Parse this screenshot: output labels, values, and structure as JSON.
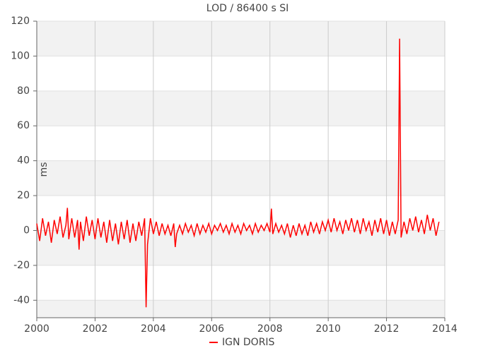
{
  "chart_data": {
    "type": "line",
    "title": "LOD / 86400 s SI",
    "ylabel": "ms",
    "xlim": [
      2000,
      2014
    ],
    "xticks": [
      2000,
      2002,
      2004,
      2006,
      2008,
      2010,
      2012,
      2014
    ],
    "ylim": [
      -50,
      120
    ],
    "yticks": [
      -40,
      -20,
      0,
      20,
      40,
      60,
      80,
      100,
      120
    ],
    "grid": true,
    "legend": "bottom",
    "series": [
      {
        "name": "IGN DORIS",
        "color": "#ff0000",
        "x": [
          2000,
          2000.1,
          2000.2,
          2000.3,
          2000.4,
          2000.5,
          2000.6,
          2000.7,
          2000.8,
          2000.9,
          2001,
          2001.05,
          2001.1,
          2001.2,
          2001.3,
          2001.4,
          2001.45,
          2001.5,
          2001.6,
          2001.7,
          2001.8,
          2001.9,
          2002,
          2002.1,
          2002.2,
          2002.3,
          2002.4,
          2002.5,
          2002.6,
          2002.7,
          2002.8,
          2002.9,
          2003,
          2003.1,
          2003.2,
          2003.3,
          2003.4,
          2003.5,
          2003.6,
          2003.7,
          2003.75,
          2003.8,
          2003.9,
          2004,
          2004.1,
          2004.2,
          2004.3,
          2004.4,
          2004.5,
          2004.6,
          2004.7,
          2004.75,
          2004.8,
          2004.9,
          2005,
          2005.1,
          2005.2,
          2005.3,
          2005.4,
          2005.5,
          2005.6,
          2005.7,
          2005.8,
          2005.9,
          2006,
          2006.1,
          2006.2,
          2006.3,
          2006.4,
          2006.5,
          2006.6,
          2006.7,
          2006.8,
          2006.9,
          2007,
          2007.1,
          2007.2,
          2007.3,
          2007.4,
          2007.5,
          2007.6,
          2007.7,
          2007.8,
          2007.9,
          2008,
          2008.05,
          2008.1,
          2008.2,
          2008.3,
          2008.4,
          2008.5,
          2008.6,
          2008.7,
          2008.8,
          2008.9,
          2009,
          2009.1,
          2009.2,
          2009.3,
          2009.4,
          2009.5,
          2009.6,
          2009.7,
          2009.8,
          2009.9,
          2010,
          2010.1,
          2010.2,
          2010.3,
          2010.4,
          2010.5,
          2010.6,
          2010.7,
          2010.8,
          2010.9,
          2011,
          2011.1,
          2011.2,
          2011.3,
          2011.4,
          2011.5,
          2011.6,
          2011.7,
          2011.8,
          2011.9,
          2012,
          2012.1,
          2012.2,
          2012.3,
          2012.4,
          2012.45,
          2012.5,
          2012.6,
          2012.7,
          2012.8,
          2012.9,
          2013,
          2013.1,
          2013.2,
          2013.3,
          2013.4,
          2013.5,
          2013.6,
          2013.7,
          2013.8
        ],
        "values": [
          4,
          -6,
          7,
          -3,
          5,
          -7,
          6,
          -2,
          8,
          -4,
          3,
          13,
          -5,
          7,
          -4,
          6,
          -11,
          5,
          -6,
          8,
          -3,
          6,
          -5,
          7,
          -4,
          5,
          -7,
          6,
          -6,
          4,
          -8,
          5,
          -5,
          6,
          -7,
          4,
          -6,
          5,
          -3,
          7,
          -44,
          -8,
          7,
          -2,
          5,
          -3,
          4,
          -2,
          3,
          -3,
          4,
          -9.5,
          -2,
          3,
          -2,
          4,
          -1,
          3,
          -3,
          4,
          -2,
          3,
          -1,
          4,
          -2,
          3,
          0,
          4,
          -1,
          3,
          -2,
          4,
          -1,
          3,
          -2,
          4,
          0,
          3,
          -2,
          4,
          -1,
          3,
          0,
          4,
          -1,
          12.5,
          -2,
          4,
          -1,
          3,
          -2,
          4,
          -4,
          3,
          -3,
          4,
          -2,
          3,
          -3,
          5,
          -1,
          4,
          -2,
          5,
          0,
          6,
          -1,
          7,
          0,
          5,
          -2,
          6,
          0,
          7,
          -1,
          6,
          -2,
          7,
          0,
          5,
          -3,
          6,
          -1,
          7,
          -2,
          6,
          -3,
          5,
          -2,
          6,
          110,
          -4,
          5,
          -2,
          7,
          0,
          8,
          -1,
          6,
          -2,
          9,
          0,
          7,
          -3,
          5
        ]
      }
    ]
  }
}
